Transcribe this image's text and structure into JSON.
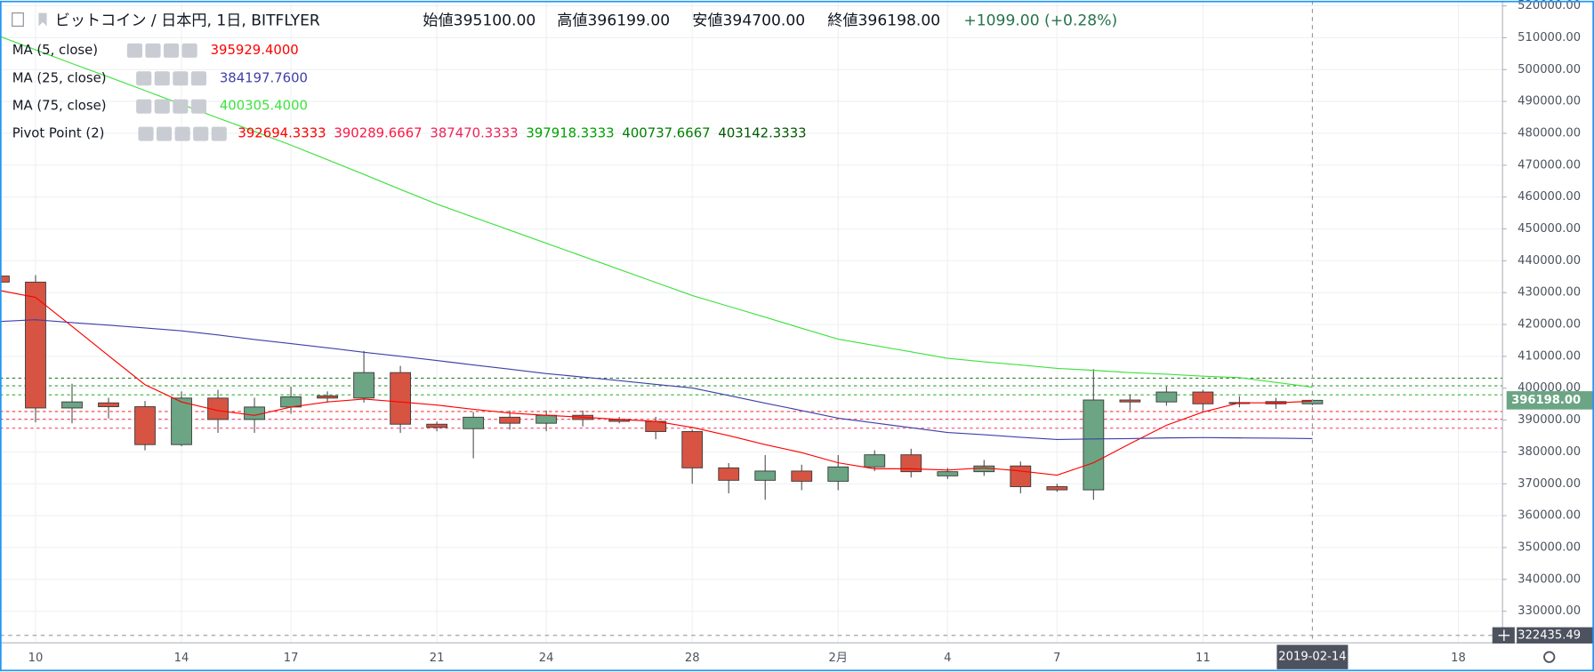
{
  "chart_data": {
    "type": "candlestick",
    "title": "ビットコイン / 日本円, 1日, BITFLYER",
    "header": [
      "始値395100.00",
      "高値396199.00",
      "安値394700.00",
      "終値396198.00",
      "+1099.00 (+0.28%)"
    ],
    "categories": [
      null,
      "10",
      null,
      null,
      null,
      "14",
      null,
      null,
      "17",
      null,
      null,
      null,
      "21",
      null,
      null,
      "24",
      null,
      null,
      null,
      "28",
      null,
      null,
      null,
      "2月",
      null,
      null,
      "4",
      null,
      null,
      "7",
      null,
      null,
      null,
      "11",
      null,
      null,
      null,
      null,
      null,
      null,
      "18",
      null
    ],
    "open": [
      435200,
      433300,
      393800,
      395400,
      394200,
      382300,
      396900,
      390200,
      394100,
      397600,
      396900,
      404900,
      388700,
      387300,
      390900,
      389000,
      391500,
      390200,
      389600,
      386400,
      375000,
      371100,
      374000,
      370800,
      375300,
      379100,
      372500,
      373800,
      375600,
      369100,
      368100,
      396300,
      395700,
      398800,
      395500,
      395800,
      395100,
      null,
      null,
      null,
      null,
      null
    ],
    "high": [
      436000,
      435500,
      401400,
      397000,
      396000,
      399000,
      399500,
      397000,
      400500,
      399000,
      411700,
      407000,
      389500,
      392500,
      393000,
      393000,
      393000,
      391000,
      391000,
      387000,
      376500,
      379000,
      376000,
      379000,
      380500,
      381000,
      375000,
      377500,
      377000,
      370000,
      406000,
      398000,
      400500,
      399500,
      397500,
      397000,
      396199,
      null,
      null,
      null,
      null,
      null
    ],
    "low": [
      432000,
      389300,
      389000,
      390500,
      380500,
      381800,
      386000,
      386000,
      392000,
      395500,
      395500,
      386000,
      386500,
      378000,
      387000,
      386500,
      388000,
      389000,
      384000,
      370000,
      367000,
      365000,
      368000,
      368000,
      374000,
      372000,
      371500,
      372500,
      367000,
      367500,
      365000,
      393000,
      394500,
      393000,
      394000,
      393500,
      394700,
      null,
      null,
      null,
      null,
      null
    ],
    "close": [
      433300,
      393800,
      395700,
      394200,
      382300,
      396900,
      390200,
      394100,
      397300,
      396900,
      404900,
      388700,
      387700,
      390900,
      389000,
      391500,
      390200,
      389600,
      386400,
      375000,
      371100,
      374000,
      370800,
      375300,
      379100,
      373800,
      373800,
      375600,
      369100,
      368100,
      396300,
      395700,
      398800,
      395100,
      395400,
      395100,
      396198,
      null,
      null,
      null,
      null,
      null
    ],
    "up_color": "#6ba583",
    "down_color": "#d75442",
    "series": [
      {
        "name": "MA (5, close)",
        "color": "#ff0000",
        "value_label": "395929.4000",
        "values": [
          430700,
          428500,
          419400,
          410200,
          401100,
          395700,
          393000,
          391500,
          394100,
          395700,
          396600,
          395700,
          394700,
          393400,
          392200,
          391500,
          390900,
          390200,
          389600,
          387700,
          385100,
          382300,
          379800,
          376600,
          374700,
          374700,
          374300,
          375000,
          374000,
          372700,
          376600,
          382600,
          388400,
          392500,
          395400,
          395400,
          395929.4,
          null,
          null,
          null,
          null,
          null
        ]
      },
      {
        "name": "MA (25, close)",
        "color": "#3f3fa8",
        "value_label": "384197.7600",
        "values": [
          420900,
          421500,
          420600,
          419800,
          418900,
          418000,
          416700,
          415300,
          414000,
          412700,
          411300,
          410000,
          408700,
          407300,
          406000,
          404600,
          403500,
          402400,
          401200,
          400100,
          397700,
          395300,
          393000,
          390600,
          389100,
          387600,
          386100,
          385400,
          384600,
          383900,
          384100,
          384200,
          384400,
          384500,
          384400,
          384300,
          384197.76,
          null,
          null,
          null,
          null,
          null
        ]
      },
      {
        "name": "MA (75, close)",
        "color": "#3ee23e",
        "value_label": "400305.4000",
        "values": [
          510500,
          506200,
          501900,
          497700,
          493400,
          489100,
          484800,
          480600,
          476300,
          471700,
          467100,
          462400,
          457800,
          453700,
          449600,
          445500,
          441400,
          437300,
          433200,
          429100,
          425700,
          422300,
          418800,
          415400,
          413400,
          411400,
          409400,
          408300,
          407300,
          406200,
          405600,
          404900,
          404400,
          403800,
          403300,
          401800,
          400305.4,
          null,
          null,
          null,
          null,
          null
        ]
      }
    ],
    "pivot": {
      "name": "Pivot Point (2)",
      "levels": [
        {
          "value": 392694.3333,
          "color": "#ff0000"
        },
        {
          "value": 390289.6667,
          "color": "#ff1744"
        },
        {
          "value": 387470.3333,
          "color": "#f0245a"
        },
        {
          "value": 397918.3333,
          "color": "#00a000"
        },
        {
          "value": 400737.6667,
          "color": "#008000"
        },
        {
          "value": 403142.3333,
          "color": "#005a00"
        }
      ]
    },
    "ylim": [
      320100,
      521600
    ],
    "yticks": [
      {
        "value": 330000,
        "label": "330000.00"
      },
      {
        "value": 340000,
        "label": "340000.00"
      },
      {
        "value": 350000,
        "label": "350000.00"
      },
      {
        "value": 360000,
        "label": "360000.00"
      },
      {
        "value": 370000,
        "label": "370000.00"
      },
      {
        "value": 380000,
        "label": "380000.00"
      },
      {
        "value": 390000,
        "label": "390000.00"
      },
      {
        "value": 400000,
        "label": "400000.00"
      },
      {
        "value": 410000,
        "label": "410000.00"
      },
      {
        "value": 420000,
        "label": "420000.00"
      },
      {
        "value": 430000,
        "label": "430000.00"
      },
      {
        "value": 440000,
        "label": "440000.00"
      },
      {
        "value": 450000,
        "label": "450000.00"
      },
      {
        "value": 460000,
        "label": "460000.00"
      },
      {
        "value": 470000,
        "label": "470000.00"
      },
      {
        "value": 480000,
        "label": "480000.00"
      },
      {
        "value": 490000,
        "label": "490000.00"
      },
      {
        "value": 500000,
        "label": "500000.00"
      },
      {
        "value": 510000,
        "label": "510000.00"
      },
      {
        "value": 520000,
        "label": "520000.00"
      }
    ],
    "grid": true,
    "last_price_label": "396198.00",
    "crosshair_y": 322435.49,
    "crosshair_date": "2019-02-14"
  }
}
